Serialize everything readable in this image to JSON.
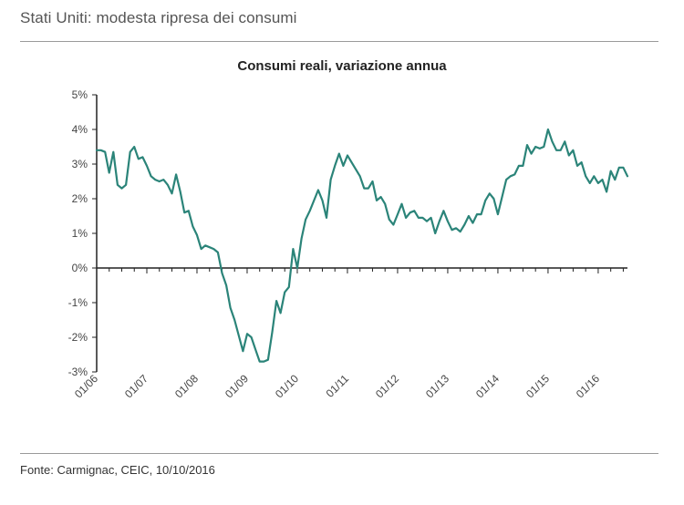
{
  "page": {
    "title": "Stati Uniti: modesta ripresa dei consumi",
    "source": "Fonte: Carmignac, CEIC, 10/10/2016"
  },
  "colors": {
    "line": "#2b8479",
    "axis": "#222222",
    "tick": "#888888",
    "label": "#444444"
  },
  "chart_data": {
    "type": "line",
    "title": "Consumi reali, variazione annua",
    "xlabel": "",
    "ylabel": "",
    "ylim": [
      -3,
      5
    ],
    "yticks": [
      -3,
      -2,
      -1,
      0,
      1,
      2,
      3,
      4,
      5
    ],
    "ytick_labels": [
      "-3%",
      "-2%",
      "-1%",
      "0%",
      "1%",
      "2%",
      "3%",
      "4%",
      "5%"
    ],
    "x_start": "2006-01",
    "x_end": "2016-09",
    "xtick_labels": [
      "01/06",
      "01/07",
      "01/08",
      "01/09",
      "01/10",
      "01/11",
      "01/12",
      "01/13",
      "01/14",
      "01/15",
      "01/16"
    ],
    "grid": false,
    "series": [
      {
        "name": "Consumi reali, variazione annua",
        "unit": "%",
        "values": [
          3.4,
          3.4,
          3.35,
          2.75,
          3.35,
          2.4,
          2.3,
          2.4,
          3.35,
          3.5,
          3.15,
          3.2,
          2.95,
          2.65,
          2.55,
          2.5,
          2.55,
          2.4,
          2.15,
          2.7,
          2.2,
          1.6,
          1.65,
          1.2,
          0.95,
          0.55,
          0.65,
          0.6,
          0.55,
          0.45,
          -0.15,
          -0.5,
          -1.15,
          -1.5,
          -1.95,
          -2.4,
          -1.9,
          -2.0,
          -2.35,
          -2.7,
          -2.7,
          -2.65,
          -1.85,
          -0.95,
          -1.3,
          -0.7,
          -0.55,
          0.55,
          0.0,
          0.85,
          1.4,
          1.65,
          1.95,
          2.25,
          1.95,
          1.45,
          2.55,
          2.95,
          3.3,
          2.95,
          3.25,
          3.05,
          2.85,
          2.65,
          2.3,
          2.3,
          2.5,
          1.95,
          2.05,
          1.85,
          1.4,
          1.25,
          1.55,
          1.85,
          1.45,
          1.6,
          1.65,
          1.45,
          1.45,
          1.35,
          1.45,
          1.0,
          1.35,
          1.65,
          1.35,
          1.1,
          1.15,
          1.05,
          1.25,
          1.5,
          1.3,
          1.55,
          1.55,
          1.95,
          2.15,
          2.0,
          1.55,
          2.05,
          2.55,
          2.65,
          2.7,
          2.95,
          2.95,
          3.55,
          3.3,
          3.5,
          3.45,
          3.5,
          4.0,
          3.65,
          3.4,
          3.4,
          3.65,
          3.25,
          3.4,
          2.95,
          3.05,
          2.65,
          2.45,
          2.65,
          2.45,
          2.55,
          2.2,
          2.8,
          2.55,
          2.9,
          2.9,
          2.65
        ]
      }
    ]
  }
}
